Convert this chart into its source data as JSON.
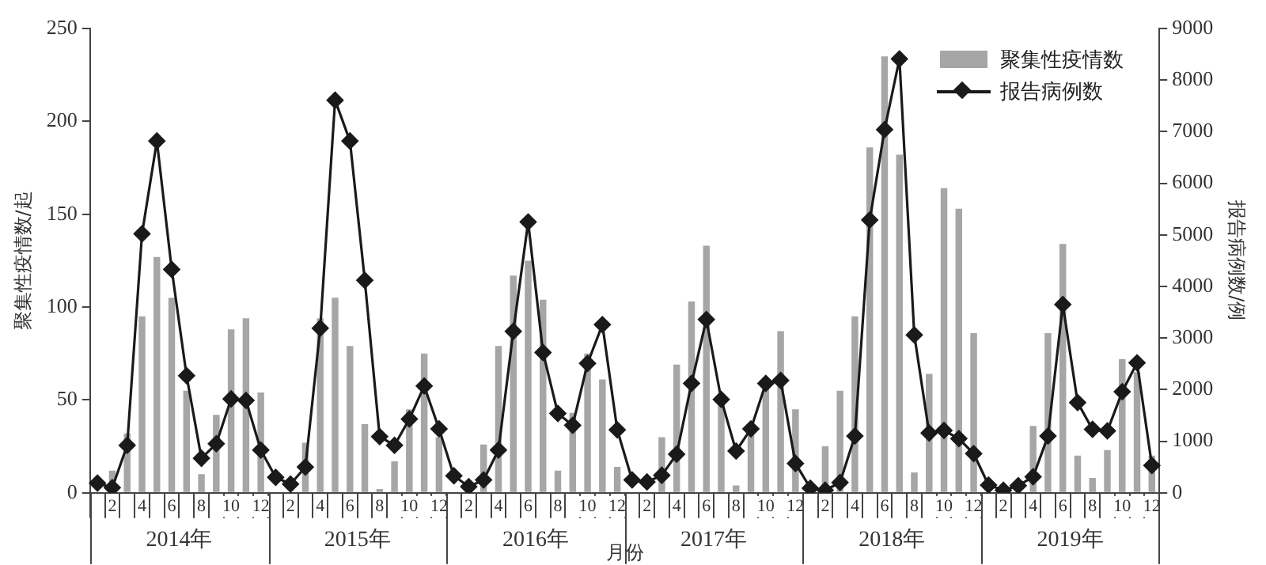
{
  "chart_data": {
    "type": "bar",
    "xlabel": "月份",
    "ylabel": "聚集性疫情数/起",
    "y2label": "报告病例数/例",
    "categories": [
      null,
      "2",
      null,
      "4",
      null,
      "6",
      null,
      "8",
      null,
      "10",
      null,
      "12",
      null,
      "2",
      null,
      "4",
      null,
      "6",
      null,
      "8",
      null,
      "10",
      null,
      "12",
      null,
      "2",
      null,
      "4",
      null,
      "6",
      null,
      "8",
      null,
      "10",
      null,
      "12",
      null,
      "2",
      null,
      "4",
      null,
      "6",
      null,
      "8",
      null,
      "10",
      null,
      "12",
      null,
      "2",
      null,
      "4",
      null,
      "6",
      null,
      "8",
      null,
      "10",
      null,
      "12",
      null,
      "2",
      null,
      "4",
      null,
      "6",
      null,
      "8",
      null,
      "10",
      null,
      "12"
    ],
    "series": [
      {
        "name": "聚集性疫情数",
        "color": "#a6a6a6",
        "values": [
          0,
          12,
          32,
          95,
          127,
          105,
          55,
          10,
          42,
          88,
          94,
          54,
          0,
          0,
          27,
          94,
          105,
          79,
          37,
          2,
          17,
          45,
          75,
          30,
          0,
          0,
          26,
          79,
          117,
          125,
          104,
          12,
          43,
          75,
          61,
          14,
          0,
          0,
          30,
          69,
          103,
          133,
          50,
          4,
          33,
          58,
          87,
          45,
          0,
          25,
          55,
          95,
          186,
          235,
          182,
          11,
          64,
          164,
          153,
          86,
          0,
          0,
          null,
          36,
          86,
          134,
          20,
          8,
          23,
          72,
          65,
          20
        ]
      },
      {
        "name": "报告病例数",
        "type": "line",
        "axis": "y2",
        "color": "#1a1a1a",
        "marker": "diamond",
        "line_style": "solid",
        "values": [
          190,
          100,
          920,
          5020,
          6820,
          4330,
          2270,
          670,
          950,
          1820,
          1790,
          830,
          300,
          170,
          500,
          3190,
          7610,
          6820,
          4120,
          1090,
          920,
          1430,
          2070,
          1240,
          330,
          120,
          250,
          830,
          3130,
          5250,
          2720,
          1540,
          1310,
          2510,
          3260,
          1220,
          250,
          210,
          340,
          750,
          2120,
          3360,
          1810,
          810,
          1240,
          2120,
          2180,
          570,
          90,
          50,
          200,
          1100,
          5290,
          7040,
          8410,
          3060,
          1160,
          1210,
          1050,
          760,
          150,
          50,
          140,
          310,
          1100,
          3650,
          1750,
          1230,
          1200,
          1960,
          2520,
          530
        ]
      }
    ],
    "ylim": [
      0,
      250
    ],
    "yticks": [
      0,
      50,
      100,
      150,
      200,
      250
    ],
    "y2lim": [
      0,
      9000
    ],
    "y2ticks": [
      0,
      1000,
      2000,
      3000,
      4000,
      5000,
      6000,
      7000,
      8000,
      9000
    ],
    "grid": false,
    "legend": "top right",
    "annotations": [
      "2014年",
      "2015年",
      "2016年",
      "2017年",
      "2018年",
      "2019年"
    ]
  }
}
